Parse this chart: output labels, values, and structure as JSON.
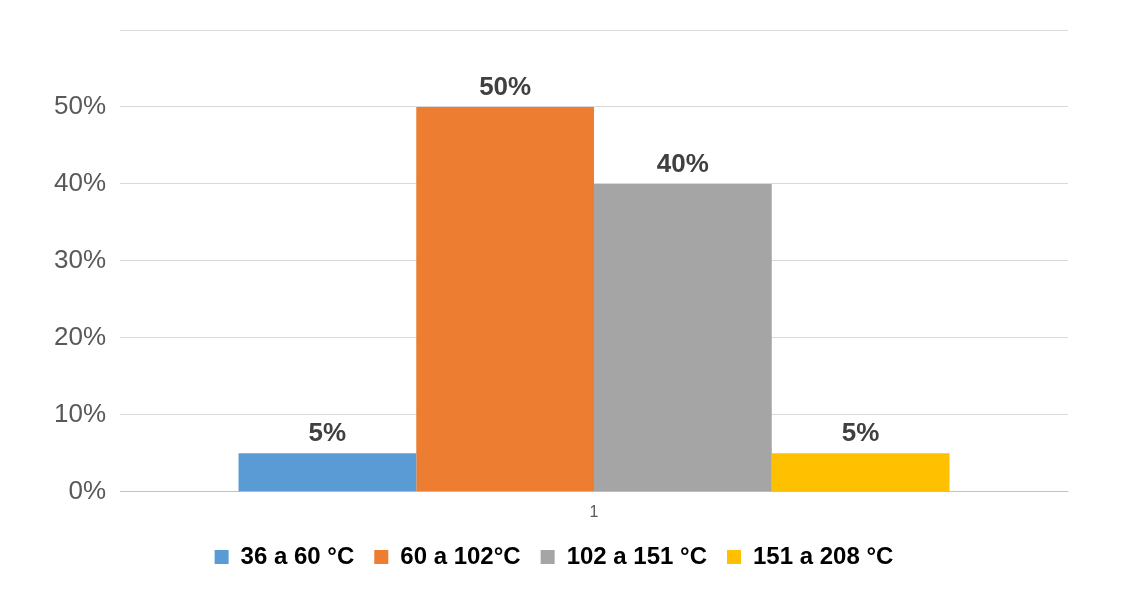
{
  "chart_data": {
    "type": "bar",
    "categories": [
      "1"
    ],
    "series": [
      {
        "name": "36 a 60 °C",
        "color": "#5b9bd5",
        "values": [
          5
        ],
        "value_labels": [
          "5%"
        ]
      },
      {
        "name": "60 a 102°C",
        "color": "#ed7d31",
        "values": [
          50
        ],
        "value_labels": [
          "50%"
        ]
      },
      {
        "name": "102 a 151 °C",
        "color": "#a5a5a5",
        "values": [
          40
        ],
        "value_labels": [
          "40%"
        ]
      },
      {
        "name": "151 a 208 °C",
        "color": "#ffc000",
        "values": [
          5
        ],
        "value_labels": [
          "5%"
        ]
      }
    ],
    "ylim": [
      0,
      60
    ],
    "yticks": [
      {
        "value": 0,
        "label": "0%"
      },
      {
        "value": 10,
        "label": "10%"
      },
      {
        "value": 20,
        "label": "20%"
      },
      {
        "value": 30,
        "label": "30%"
      },
      {
        "value": 40,
        "label": "40%"
      },
      {
        "value": 50,
        "label": "50%"
      },
      {
        "value": 60,
        "label": null
      }
    ],
    "grid": "y",
    "legend": "bottom"
  }
}
